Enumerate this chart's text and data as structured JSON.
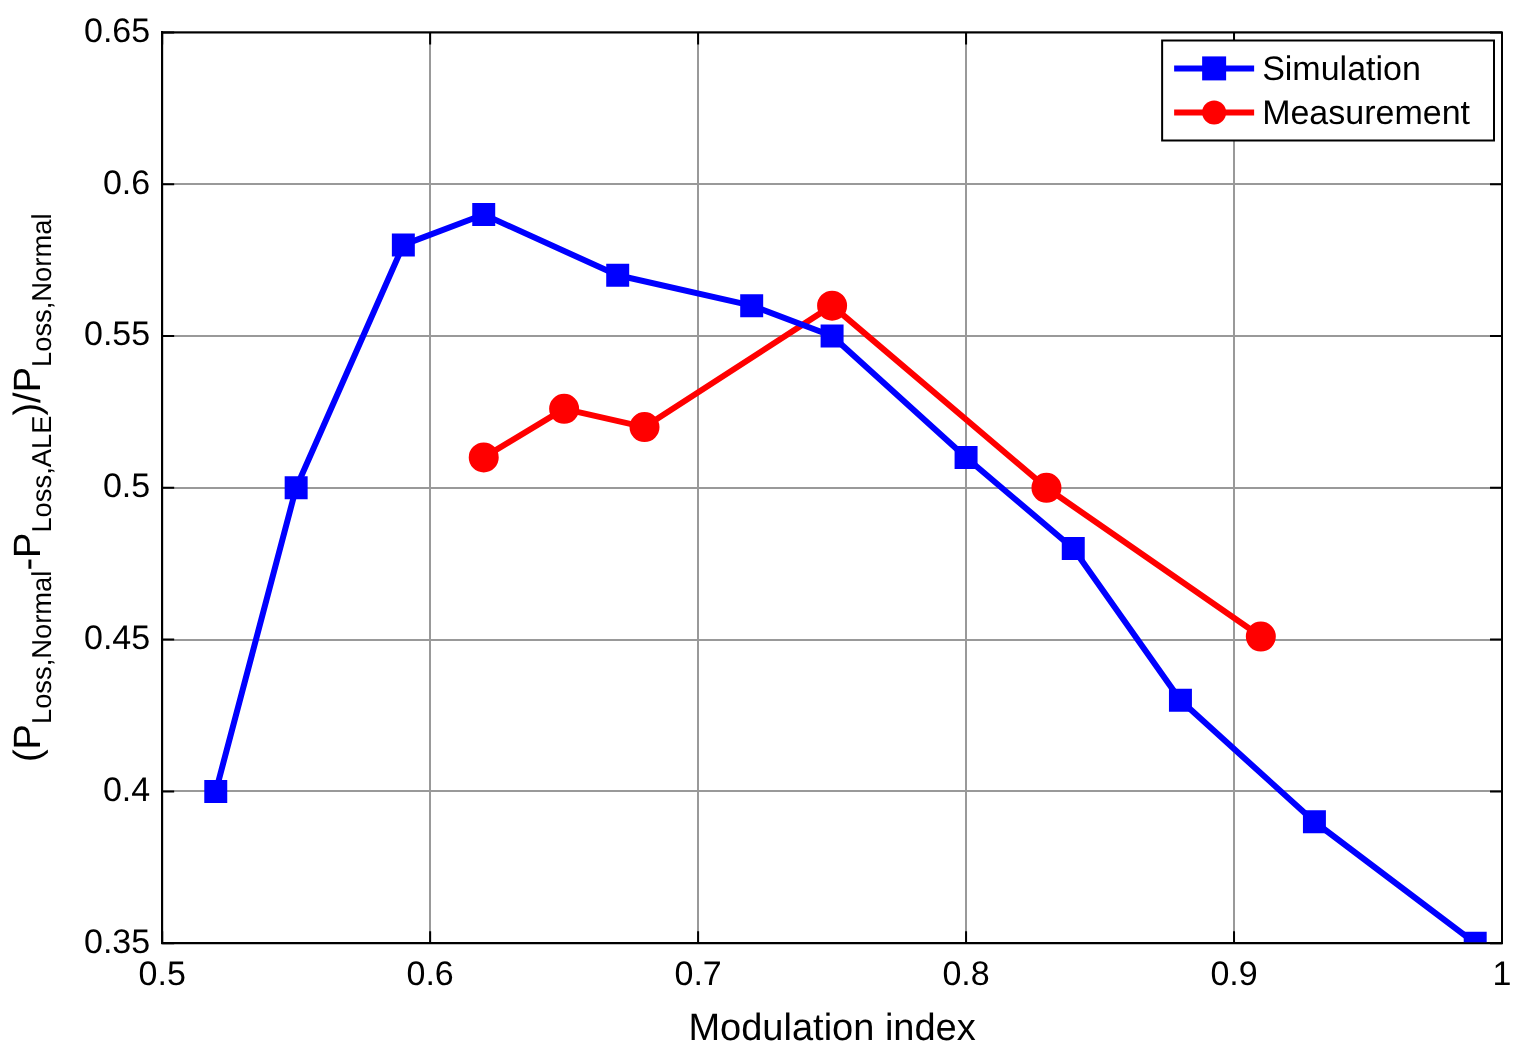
{
  "chart_data": {
    "type": "line",
    "xlabel": "Modulation index",
    "ylabel": "(P$_{Loss,Normal}$-P$_{Loss,ALE}$)/P$_{Loss,Normal}$",
    "xlim": [
      0.5,
      1
    ],
    "xticks": [
      0.5,
      0.6,
      0.7,
      0.8,
      0.9,
      1
    ],
    "ylim": [
      0.35,
      0.65
    ],
    "yticks": [
      0.35,
      0.4,
      0.45,
      0.5,
      0.55,
      0.6,
      0.65
    ],
    "grid": true,
    "legend": "top right",
    "line_style": "solid",
    "series": [
      {
        "name": "Simulation",
        "color": "#0000ff",
        "marker": "square",
        "x": [
          0.52,
          0.55,
          0.59,
          0.62,
          0.67,
          0.72,
          0.75,
          0.8,
          0.84,
          0.88,
          0.93,
          0.99
        ],
        "values": [
          0.4,
          0.5,
          0.58,
          0.59,
          0.57,
          0.56,
          0.55,
          0.51,
          0.48,
          0.43,
          0.39,
          0.35
        ]
      },
      {
        "name": "Measurement",
        "color": "#ff0000",
        "marker": "circle",
        "x": [
          0.62,
          0.65,
          0.68,
          0.75,
          0.83,
          0.91
        ],
        "values": [
          0.51,
          0.526,
          0.52,
          0.56,
          0.5,
          0.451
        ]
      }
    ]
  }
}
